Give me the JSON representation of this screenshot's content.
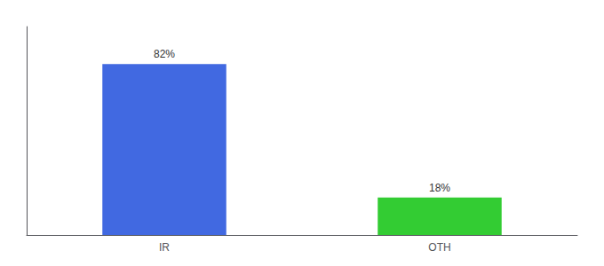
{
  "chart_data": {
    "type": "bar",
    "categories": [
      "IR",
      "OTH"
    ],
    "values": [
      82,
      18
    ],
    "value_labels": [
      "82%",
      "18%"
    ],
    "colors": [
      "#4169e1",
      "#33cc33"
    ],
    "data_labels": true,
    "ylim": [
      0,
      100
    ],
    "tick_labels": "x",
    "grid": false
  }
}
